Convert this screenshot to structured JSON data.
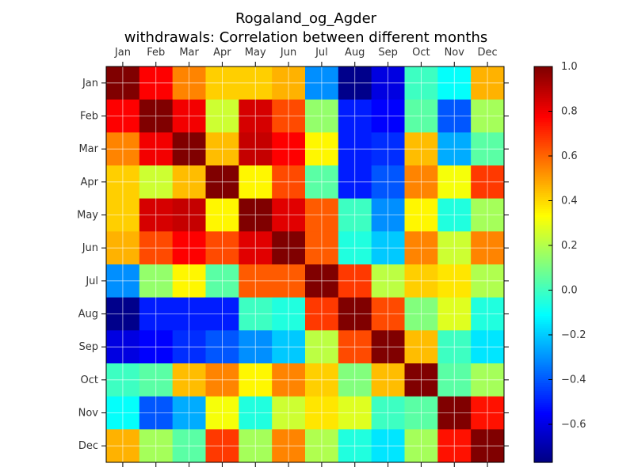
{
  "chart_data": {
    "type": "heatmap",
    "title_line1": "Rogaland_og_Agder",
    "title_line2": "withdrawals: Correlation between different months",
    "xlabel": "",
    "ylabel": "",
    "categories": [
      "Jan",
      "Feb",
      "Mar",
      "Apr",
      "May",
      "Jun",
      "Jul",
      "Aug",
      "Sep",
      "Oct",
      "Nov",
      "Dec"
    ],
    "colormap": "jet",
    "vmin": -0.77,
    "vmax": 1.0,
    "grid": true,
    "colorbar_ticks": [
      1.0,
      0.8,
      0.6,
      0.4,
      0.2,
      0.0,
      -0.2,
      -0.4,
      -0.6
    ],
    "colorbar_tick_labels": [
      "1.0",
      "0.8",
      "0.6",
      "0.4",
      "0.2",
      "0.0",
      "−0.2",
      "−0.4",
      "−0.6"
    ],
    "values": [
      [
        1.0,
        0.78,
        0.55,
        0.42,
        0.42,
        0.47,
        -0.3,
        -0.75,
        -0.6,
        0.0,
        -0.1,
        0.47
      ],
      [
        0.78,
        1.0,
        0.8,
        0.25,
        0.85,
        0.65,
        0.15,
        -0.5,
        -0.55,
        0.05,
        -0.4,
        0.18
      ],
      [
        0.55,
        0.8,
        1.0,
        0.45,
        0.88,
        0.78,
        0.35,
        -0.5,
        -0.47,
        0.45,
        -0.25,
        0.05
      ],
      [
        0.42,
        0.25,
        0.45,
        1.0,
        0.35,
        0.65,
        0.05,
        -0.5,
        -0.4,
        0.55,
        0.32,
        0.68
      ],
      [
        0.42,
        0.85,
        0.88,
        0.35,
        1.0,
        0.83,
        0.62,
        0.0,
        -0.3,
        0.35,
        -0.05,
        0.18
      ],
      [
        0.47,
        0.65,
        0.78,
        0.65,
        0.83,
        1.0,
        0.62,
        -0.05,
        -0.2,
        0.55,
        0.25,
        0.55
      ],
      [
        -0.3,
        0.15,
        0.35,
        0.05,
        0.62,
        0.62,
        1.0,
        0.68,
        0.22,
        0.42,
        0.38,
        0.2
      ],
      [
        -0.75,
        -0.5,
        -0.5,
        -0.5,
        0.0,
        -0.05,
        0.68,
        1.0,
        0.65,
        0.12,
        0.28,
        -0.05
      ],
      [
        -0.6,
        -0.55,
        -0.47,
        -0.4,
        -0.3,
        -0.2,
        0.22,
        0.65,
        1.0,
        0.45,
        0.0,
        -0.15
      ],
      [
        0.0,
        0.05,
        0.45,
        0.55,
        0.35,
        0.55,
        0.42,
        0.12,
        0.45,
        1.0,
        0.05,
        0.18
      ],
      [
        -0.1,
        -0.4,
        -0.25,
        0.32,
        -0.05,
        0.25,
        0.38,
        0.28,
        0.0,
        0.05,
        1.0,
        0.75
      ],
      [
        0.47,
        0.18,
        0.05,
        0.68,
        0.18,
        0.55,
        0.2,
        -0.05,
        -0.15,
        0.18,
        0.75,
        1.0
      ]
    ]
  }
}
